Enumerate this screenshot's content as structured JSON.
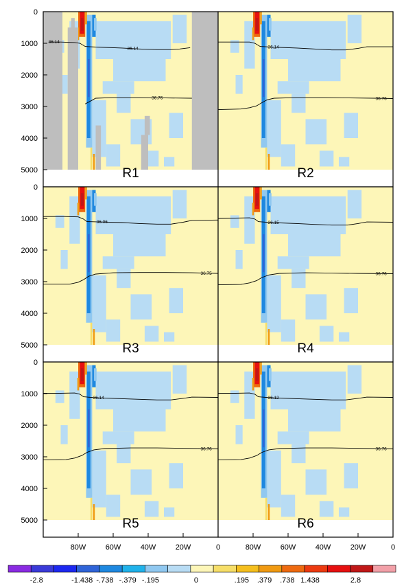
{
  "chart_data": {
    "type": "heatmap",
    "layout": "3x2 panel section plots, depth vs longitude",
    "y_axis": {
      "ticks": [
        0,
        1000,
        2000,
        3000,
        4000,
        5000
      ],
      "tick_labels": [
        "0",
        "1000",
        "2000",
        "3000",
        "4000",
        "5000"
      ],
      "range": [
        0,
        5000
      ],
      "inverted": true,
      "shown_on": "left panels"
    },
    "x_axis": {
      "range": [
        -100,
        0
      ],
      "ticks": [
        -80,
        -60,
        -40,
        -20,
        0
      ],
      "tick_labels": [
        "80W",
        "60W",
        "40W",
        "20W",
        "0"
      ],
      "shown_on": "bottom panels"
    },
    "colorbar": {
      "placement": "bottom",
      "labels": [
        "-2.8",
        "-1.438",
        "-.738",
        "-.379",
        "-.195",
        "0",
        ".195",
        ".379",
        ".738",
        "1.438",
        "2.8"
      ],
      "colors": [
        "#8a2be2",
        "#3a3ad8",
        "#1c28f0",
        "#2f64d8",
        "#1e88e0",
        "#20b2ea",
        "#90c8f0",
        "#b8dcf4",
        "#fdf6b8",
        "#f6de68",
        "#f5bf1e",
        "#f09a12",
        "#ee6a10",
        "#ec3a10",
        "#e61010",
        "#c01818",
        "#f2a0a8"
      ]
    },
    "panels": [
      {
        "label": "R1",
        "contours": [
          {
            "label": "36.14",
            "points": [
              [
                -97,
                960
              ],
              [
                -90,
                960
              ],
              [
                -82,
                975
              ],
              [
                -79,
                1000
              ],
              [
                -76,
                1100
              ],
              [
                -70,
                1120
              ],
              [
                -55,
                1150
              ],
              [
                -45,
                1180
              ],
              [
                -35,
                1200
              ],
              [
                -27,
                1200
              ],
              [
                -22,
                1180
              ],
              [
                -16,
                1140
              ]
            ]
          },
          {
            "label": "36.76",
            "points": [
              [
                -76,
                2920
              ],
              [
                -73,
                2830
              ],
              [
                -70,
                2740
              ],
              [
                -60,
                2720
              ],
              [
                -45,
                2720
              ],
              [
                -30,
                2730
              ],
              [
                -15,
                2740
              ]
            ]
          }
        ],
        "land": true
      },
      {
        "label": "R2",
        "contours": [
          {
            "label": "36.14",
            "points": [
              [
                -100,
                960
              ],
              [
                -90,
                960
              ],
              [
                -82,
                960
              ],
              [
                -79,
                1000
              ],
              [
                -76,
                1100
              ],
              [
                -70,
                1120
              ],
              [
                -55,
                1150
              ],
              [
                -45,
                1180
              ],
              [
                -35,
                1210
              ],
              [
                -27,
                1210
              ],
              [
                -20,
                1160
              ],
              [
                -15,
                1110
              ],
              [
                0,
                1110
              ]
            ]
          },
          {
            "label": "36.76",
            "points": [
              [
                -100,
                3100
              ],
              [
                -87,
                3080
              ],
              [
                -82,
                3040
              ],
              [
                -78,
                2980
              ],
              [
                -75,
                2880
              ],
              [
                -72,
                2790
              ],
              [
                -68,
                2740
              ],
              [
                -55,
                2720
              ],
              [
                -40,
                2720
              ],
              [
                -25,
                2730
              ],
              [
                -10,
                2740
              ],
              [
                0,
                2750
              ]
            ]
          }
        ],
        "land": false
      },
      {
        "label": "R3",
        "contours": [
          {
            "label": "36.06",
            "points": [
              [
                -100,
                940
              ],
              [
                -88,
                940
              ],
              [
                -80,
                950
              ],
              [
                -77,
                1020
              ],
              [
                -75,
                1100
              ],
              [
                -68,
                1110
              ],
              [
                -55,
                1130
              ],
              [
                -45,
                1160
              ],
              [
                -35,
                1180
              ],
              [
                -27,
                1180
              ],
              [
                -20,
                1120
              ],
              [
                -15,
                1060
              ],
              [
                0,
                1050
              ]
            ]
          },
          {
            "label": "36.75",
            "points": [
              [
                -100,
                3080
              ],
              [
                -85,
                3080
              ],
              [
                -80,
                3020
              ],
              [
                -77,
                2940
              ],
              [
                -74,
                2830
              ],
              [
                -70,
                2760
              ],
              [
                -60,
                2720
              ],
              [
                -45,
                2710
              ],
              [
                -30,
                2710
              ],
              [
                -15,
                2720
              ],
              [
                0,
                2740
              ]
            ]
          }
        ],
        "land": false
      },
      {
        "label": "R4",
        "contours": [
          {
            "label": "36.15",
            "points": [
              [
                -100,
                1000
              ],
              [
                -90,
                990
              ],
              [
                -82,
                980
              ],
              [
                -79,
                1020
              ],
              [
                -77,
                1100
              ],
              [
                -70,
                1130
              ],
              [
                -55,
                1160
              ],
              [
                -45,
                1190
              ],
              [
                -35,
                1210
              ],
              [
                -26,
                1210
              ],
              [
                -20,
                1160
              ],
              [
                -15,
                1110
              ],
              [
                0,
                1120
              ]
            ]
          },
          {
            "label": "36.76",
            "points": [
              [
                -100,
                3100
              ],
              [
                -87,
                3090
              ],
              [
                -82,
                3040
              ],
              [
                -78,
                2970
              ],
              [
                -75,
                2870
              ],
              [
                -71,
                2790
              ],
              [
                -65,
                2740
              ],
              [
                -50,
                2720
              ],
              [
                -35,
                2730
              ],
              [
                -20,
                2740
              ],
              [
                0,
                2750
              ]
            ]
          }
        ],
        "land": false
      },
      {
        "label": "R5",
        "contours": [
          {
            "label": "36.14",
            "points": [
              [
                -100,
                990
              ],
              [
                -90,
                990
              ],
              [
                -82,
                980
              ],
              [
                -79,
                1020
              ],
              [
                -77,
                1100
              ],
              [
                -70,
                1130
              ],
              [
                -55,
                1160
              ],
              [
                -45,
                1180
              ],
              [
                -35,
                1200
              ],
              [
                -27,
                1200
              ],
              [
                -20,
                1150
              ],
              [
                -15,
                1110
              ],
              [
                0,
                1120
              ]
            ]
          },
          {
            "label": "36.76",
            "points": [
              [
                -100,
                3100
              ],
              [
                -87,
                3090
              ],
              [
                -82,
                3040
              ],
              [
                -78,
                2960
              ],
              [
                -75,
                2860
              ],
              [
                -71,
                2780
              ],
              [
                -65,
                2740
              ],
              [
                -50,
                2720
              ],
              [
                -35,
                2720
              ],
              [
                -20,
                2730
              ],
              [
                0,
                2750
              ]
            ]
          }
        ],
        "land": false
      },
      {
        "label": "R6",
        "contours": [
          {
            "label": "36.12",
            "points": [
              [
                -100,
                990
              ],
              [
                -90,
                990
              ],
              [
                -82,
                980
              ],
              [
                -79,
                1020
              ],
              [
                -77,
                1100
              ],
              [
                -70,
                1130
              ],
              [
                -55,
                1160
              ],
              [
                -45,
                1180
              ],
              [
                -35,
                1200
              ],
              [
                -27,
                1200
              ],
              [
                -20,
                1150
              ],
              [
                -15,
                1110
              ],
              [
                0,
                1120
              ]
            ]
          },
          {
            "label": "36.76",
            "points": [
              [
                -100,
                3100
              ],
              [
                -87,
                3090
              ],
              [
                -82,
                3040
              ],
              [
                -78,
                2960
              ],
              [
                -75,
                2860
              ],
              [
                -71,
                2780
              ],
              [
                -65,
                2740
              ],
              [
                -50,
                2720
              ],
              [
                -35,
                2720
              ],
              [
                -20,
                2730
              ],
              [
                0,
                2750
              ]
            ]
          }
        ],
        "land": false
      }
    ]
  }
}
